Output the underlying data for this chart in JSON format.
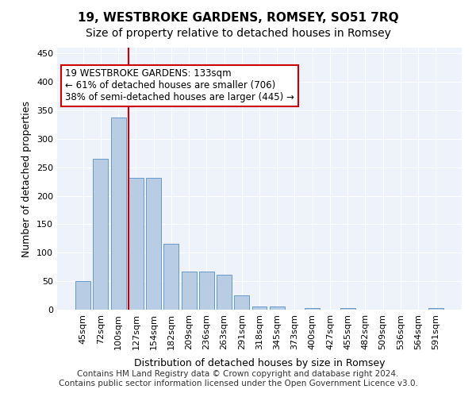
{
  "title": "19, WESTBROKE GARDENS, ROMSEY, SO51 7RQ",
  "subtitle": "Size of property relative to detached houses in Romsey",
  "xlabel": "Distribution of detached houses by size in Romsey",
  "ylabel": "Number of detached properties",
  "categories": [
    "45sqm",
    "72sqm",
    "100sqm",
    "127sqm",
    "154sqm",
    "182sqm",
    "209sqm",
    "236sqm",
    "263sqm",
    "291sqm",
    "318sqm",
    "345sqm",
    "373sqm",
    "400sqm",
    "427sqm",
    "455sqm",
    "482sqm",
    "509sqm",
    "536sqm",
    "564sqm",
    "591sqm"
  ],
  "values": [
    50,
    265,
    338,
    232,
    232,
    116,
    67,
    67,
    61,
    25,
    5,
    5,
    0,
    3,
    0,
    3,
    0,
    0,
    0,
    0,
    3
  ],
  "bar_color": "#b8cce4",
  "bar_edge_color": "#6699cc",
  "vline_x": 3,
  "vline_color": "#cc0000",
  "annotation_text": "19 WESTBROKE GARDENS: 133sqm\n← 61% of detached houses are smaller (706)\n38% of semi-detached houses are larger (445) →",
  "annotation_box_color": "#cc0000",
  "ylim": [
    0,
    460
  ],
  "yticks": [
    0,
    50,
    100,
    150,
    200,
    250,
    300,
    350,
    400,
    450
  ],
  "footer_line1": "Contains HM Land Registry data © Crown copyright and database right 2024.",
  "footer_line2": "Contains public sector information licensed under the Open Government Licence v3.0.",
  "bg_color": "#e8eef8",
  "plot_bg_color": "#eef2fa",
  "title_fontsize": 11,
  "subtitle_fontsize": 10,
  "axis_label_fontsize": 9,
  "tick_fontsize": 8,
  "footer_fontsize": 7.5,
  "annotation_fontsize": 8.5
}
